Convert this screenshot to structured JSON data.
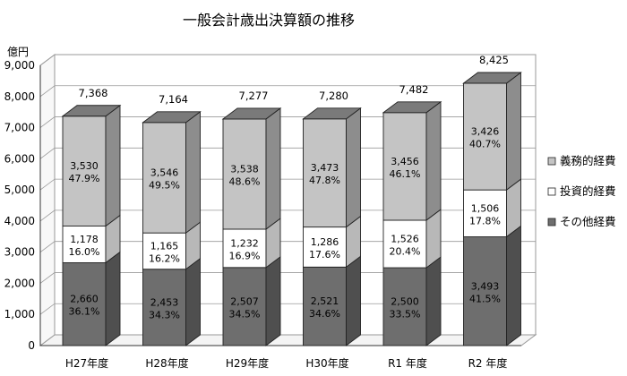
{
  "chart_data": {
    "type": "bar",
    "stacked": true,
    "three_d": true,
    "title": "一般会計歳出決算額の推移",
    "ylabel": "億円",
    "xlabel": "",
    "ylim": [
      0,
      9000
    ],
    "yticks": [
      0,
      1000,
      2000,
      3000,
      4000,
      5000,
      6000,
      7000,
      8000,
      9000
    ],
    "ytick_labels": [
      "0",
      "1,000",
      "2,000",
      "3,000",
      "4,000",
      "5,000",
      "6,000",
      "7,000",
      "8,000",
      "9,000"
    ],
    "grid": true,
    "legend_position": "right",
    "categories": [
      "H27年度",
      "H28年度",
      "H29年度",
      "H30年度",
      "R1 年度",
      "R2 年度"
    ],
    "totals": [
      7368,
      7164,
      7277,
      7280,
      7482,
      8425
    ],
    "total_labels": [
      "7,368",
      "7,164",
      "7,277",
      "7,280",
      "7,482",
      "8,425"
    ],
    "series": [
      {
        "name": "その他経費",
        "color": "#6e6e6e",
        "values": [
          2660,
          2453,
          2507,
          2521,
          2500,
          3493
        ],
        "value_labels": [
          "2,660",
          "2,453",
          "2,507",
          "2,521",
          "2,500",
          "3,493"
        ],
        "pct_labels": [
          "36.1%",
          "34.3%",
          "34.5%",
          "34.6%",
          "33.5%",
          "41.5%"
        ]
      },
      {
        "name": "投資的経費",
        "color": "#ffffff",
        "values": [
          1178,
          1165,
          1232,
          1286,
          1526,
          1506
        ],
        "value_labels": [
          "1,178",
          "1,165",
          "1,232",
          "1,286",
          "1,526",
          "1,506"
        ],
        "pct_labels": [
          "16.0%",
          "16.2%",
          "16.9%",
          "17.6%",
          "20.4%",
          "17.8%"
        ]
      },
      {
        "name": "義務的経費",
        "color": "#c4c4c4",
        "values": [
          3530,
          3546,
          3538,
          3473,
          3456,
          3426
        ],
        "value_labels": [
          "3,530",
          "3,546",
          "3,538",
          "3,473",
          "3,456",
          "3,426"
        ],
        "pct_labels": [
          "47.9%",
          "49.5%",
          "48.6%",
          "47.8%",
          "46.1%",
          "40.7%"
        ]
      }
    ],
    "legend_order": [
      2,
      1,
      0
    ]
  }
}
